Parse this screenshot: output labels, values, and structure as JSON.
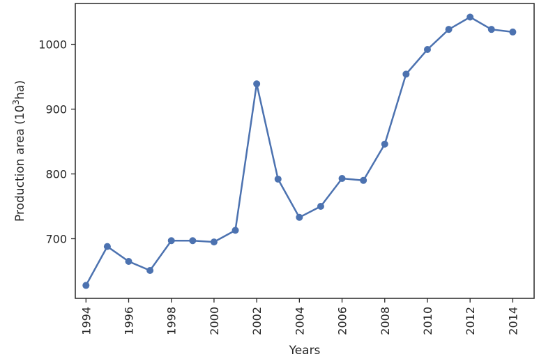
{
  "chart_data": {
    "type": "line",
    "title": "",
    "xlabel": "Years",
    "ylabel": "Production area (10",
    "ylabel_superscript": "3",
    "ylabel_suffix": "ha)",
    "x": [
      1994,
      1995,
      1996,
      1997,
      1998,
      1999,
      2000,
      2001,
      2002,
      2003,
      2004,
      2005,
      2006,
      2007,
      2008,
      2009,
      2010,
      2011,
      2012,
      2013,
      2014
    ],
    "series": [
      {
        "values": [
          628,
          688,
          665,
          651,
          697,
          697,
          695,
          713,
          939,
          792,
          733,
          750,
          793,
          790,
          846,
          954,
          992,
          1023,
          1042,
          1023,
          1019
        ],
        "color": "#4c72b0"
      }
    ],
    "xticks": [
      "1994",
      "1996",
      "1998",
      "2000",
      "2002",
      "2004",
      "2006",
      "2008",
      "2010",
      "2012",
      "2014"
    ],
    "yticks": [
      "700",
      "800",
      "900",
      "1000"
    ],
    "xlim": [
      1993.5,
      2015.0
    ],
    "ylim": [
      608,
      1063
    ],
    "grid": false,
    "legend": "none"
  }
}
